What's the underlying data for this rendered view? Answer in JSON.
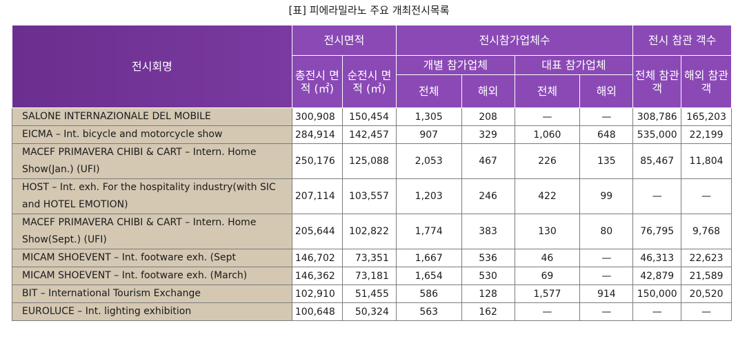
{
  "caption": "[표] 피에라밀라노 주요 개최전시목록",
  "headers": {
    "exhibition_name": "전시회명",
    "exhibition_area": "전시면적",
    "participants": "전시참가업체수",
    "visitors": "전시 참관 객수",
    "total_area": "총전시 면적 (㎡)",
    "net_area": "순전시 면적 (㎡)",
    "individual": "개별 참가업체",
    "representative": "대표 참가업체",
    "total": "전체",
    "overseas": "해외",
    "total_visitors": "전체 참관객",
    "overseas_visitors": "해외 참관객"
  },
  "rows": [
    {
      "name": "SALONE  INTERNAZIONALE DEL MOBILE",
      "total_area": "300,908",
      "net_area": "150,454",
      "ind_total": "1,305",
      "ind_overseas": "208",
      "rep_total": "—",
      "rep_overseas": "—",
      "vis_total": "308,786",
      "vis_overseas": "165,203"
    },
    {
      "name": "EICMA – Int. bicycle and motorcycle show",
      "total_area": "284,914",
      "net_area": "142,457",
      "ind_total": "907",
      "ind_overseas": "329",
      "rep_total": "1,060",
      "rep_overseas": "648",
      "vis_total": "535,000",
      "vis_overseas": "22,199"
    },
    {
      "name": "MACEF PRIMAVERA CHIBI & CART – Intern. Home Show(Jan.) (UFI)",
      "total_area": "250,176",
      "net_area": "125,088",
      "ind_total": "2,053",
      "ind_overseas": "467",
      "rep_total": "226",
      "rep_overseas": "135",
      "vis_total": "85,467",
      "vis_overseas": "11,804"
    },
    {
      "name": "HOST – Int. exh. For the hospitality industry(with SIC and HOTEL  EMOTION)",
      "total_area": "207,114",
      "net_area": "103,557",
      "ind_total": "1,203",
      "ind_overseas": "246",
      "rep_total": "422",
      "rep_overseas": "99",
      "vis_total": "—",
      "vis_overseas": "—"
    },
    {
      "name": "MACEF PRIMAVERA CHIBI & CART – Intern. Home Show(Sept.)  (UFI)",
      "total_area": "205,644",
      "net_area": "102,822",
      "ind_total": "1,774",
      "ind_overseas": "383",
      "rep_total": "130",
      "rep_overseas": "80",
      "vis_total": "76,795",
      "vis_overseas": "9,768"
    },
    {
      "name": "MICAM SHOEVENT – Int. footware exh. (Sept",
      "total_area": "146,702",
      "net_area": "73,351",
      "ind_total": "1,667",
      "ind_overseas": "536",
      "rep_total": "46",
      "rep_overseas": "—",
      "vis_total": "46,313",
      "vis_overseas": "22,623"
    },
    {
      "name": "MICAM SHOEVENT – Int. footware exh. (March)",
      "total_area": "146,362",
      "net_area": "73,181",
      "ind_total": "1,654",
      "ind_overseas": "530",
      "rep_total": "69",
      "rep_overseas": "—",
      "vis_total": "42,879",
      "vis_overseas": "21,589"
    },
    {
      "name": "BIT – International Tourism Exchange",
      "total_area": "102,910",
      "net_area": "51,455",
      "ind_total": "586",
      "ind_overseas": "128",
      "rep_total": "1,577",
      "rep_overseas": "914",
      "vis_total": "150,000",
      "vis_overseas": "20,520"
    },
    {
      "name": "EUROLUCE – Int. lighting exhibition",
      "total_area": "100,648",
      "net_area": "50,324",
      "ind_total": "563",
      "ind_overseas": "162",
      "rep_total": "—",
      "rep_overseas": "—",
      "vis_total": "—",
      "vis_overseas": "—"
    }
  ]
}
